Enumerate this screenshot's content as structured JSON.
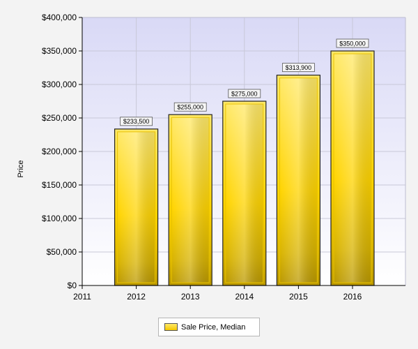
{
  "chart_data": {
    "type": "bar",
    "categories": [
      "2011",
      "2012",
      "2013",
      "2014",
      "2015",
      "2016"
    ],
    "series": [
      {
        "name": "Sale Price, Median",
        "values": [
          null,
          233500,
          255000,
          275000,
          313900,
          350000
        ],
        "data_labels": [
          "",
          "$233,500",
          "$255,000",
          "$275,000",
          "$313,900",
          "$350,000"
        ]
      }
    ],
    "ylabel": "Price",
    "xlabel": "",
    "ylim": [
      0,
      400000
    ],
    "yticks": [
      0,
      50000,
      100000,
      150000,
      200000,
      250000,
      300000,
      350000,
      400000
    ],
    "ytick_labels": [
      "$0",
      "$50,000",
      "$100,000",
      "$150,000",
      "$200,000",
      "$250,000",
      "$300,000",
      "$350,000",
      "$400,000"
    ],
    "grid": true,
    "legend_position": "bottom-center",
    "colors": {
      "bar_fill_top": "#ffe96a",
      "bar_fill_mid": "#ffd400",
      "bar_fill_bottom": "#b89600",
      "bar_edge": "#6b5a00",
      "plot_bg_top": "#d9d9f6",
      "plot_bg_bottom": "#ffffff",
      "grid": "#c8c8d8"
    }
  },
  "legend": {
    "label": "Sale Price, Median"
  }
}
